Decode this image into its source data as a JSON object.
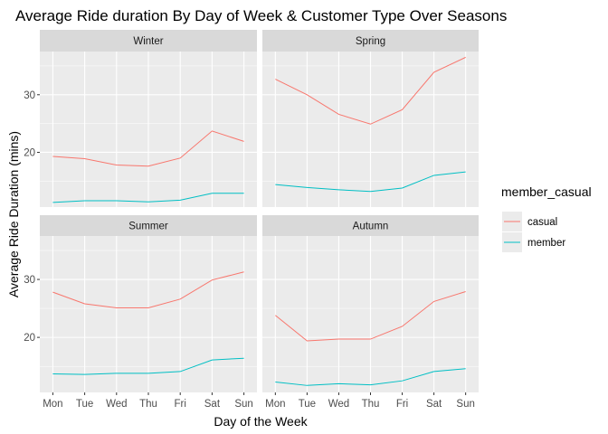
{
  "chart_data": {
    "type": "line",
    "title": "Average Ride duration By Day of Week & Customer Type Over Seasons",
    "xlabel": "Day of the Week",
    "ylabel": "Average Ride Duration (mins)",
    "categories": [
      "Mon",
      "Tue",
      "Wed",
      "Thu",
      "Fri",
      "Sat",
      "Sun"
    ],
    "y_ticks": [
      20,
      30
    ],
    "ylim": [
      10.5,
      37.5
    ],
    "grid": true,
    "legend": {
      "title": "member_casual",
      "position": "right",
      "entries": [
        {
          "name": "casual",
          "color": "#F8766D"
        },
        {
          "name": "member",
          "color": "#00BFC4"
        }
      ]
    },
    "panels": [
      {
        "name": "Winter",
        "series": [
          {
            "name": "casual",
            "values": [
              19.3,
              18.9,
              17.8,
              17.6,
              19.0,
              23.7,
              21.9
            ]
          },
          {
            "name": "member",
            "values": [
              11.3,
              11.6,
              11.6,
              11.4,
              11.7,
              12.9,
              12.9
            ]
          }
        ]
      },
      {
        "name": "Spring",
        "series": [
          {
            "name": "casual",
            "values": [
              32.7,
              30.0,
              26.6,
              24.9,
              27.4,
              33.9,
              36.5
            ]
          },
          {
            "name": "member",
            "values": [
              14.4,
              13.9,
              13.5,
              13.2,
              13.8,
              16.0,
              16.6
            ]
          }
        ]
      },
      {
        "name": "Summer",
        "series": [
          {
            "name": "casual",
            "values": [
              27.8,
              25.8,
              25.1,
              25.1,
              26.6,
              29.9,
              31.3
            ]
          },
          {
            "name": "member",
            "values": [
              13.7,
              13.6,
              13.8,
              13.8,
              14.1,
              16.1,
              16.4
            ]
          }
        ]
      },
      {
        "name": "Autumn",
        "series": [
          {
            "name": "casual",
            "values": [
              23.8,
              19.4,
              19.7,
              19.7,
              21.9,
              26.2,
              27.9
            ]
          },
          {
            "name": "member",
            "values": [
              12.3,
              11.7,
              12.0,
              11.8,
              12.5,
              14.1,
              14.6
            ]
          }
        ]
      }
    ]
  },
  "colors": {
    "panel_bg": "#EBEBEB",
    "strip_bg": "#D9D9D9",
    "grid": "#FFFFFF",
    "tick_text": "#4D4D4D"
  }
}
